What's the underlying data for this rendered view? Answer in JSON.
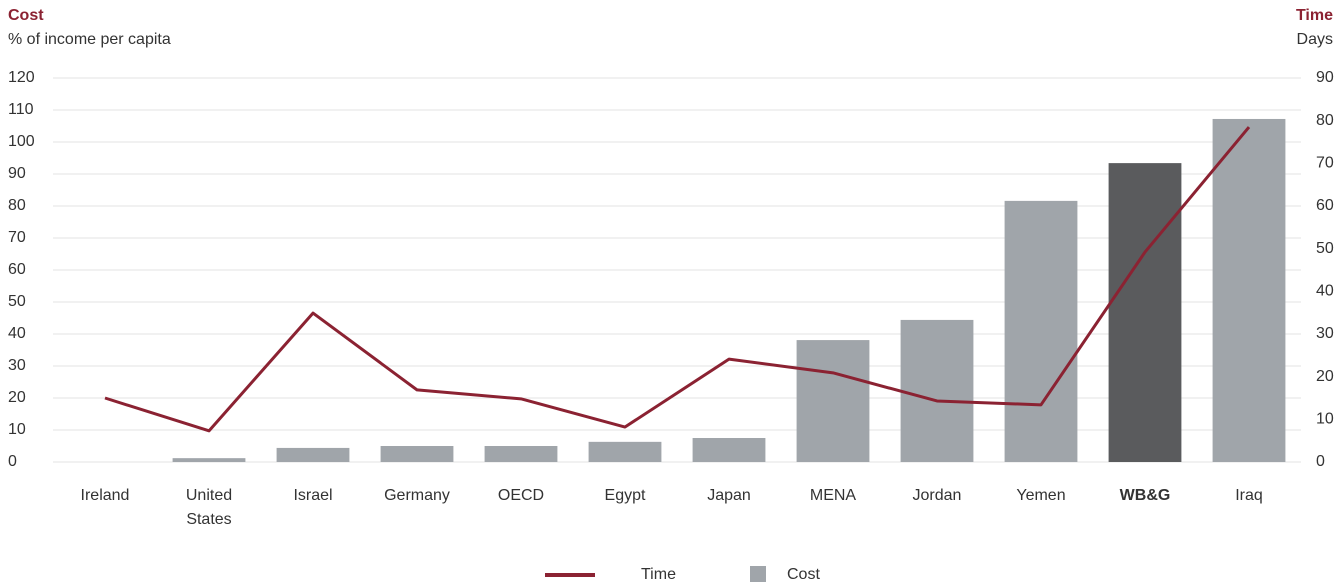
{
  "chart_data": {
    "type": "bar-line",
    "y_title": "Cost",
    "y_subtitle": "% of income per capita",
    "y2_title": "Time",
    "y2_subtitle": "Days",
    "categories": [
      "Ireland",
      "United States",
      "Israel",
      "Germany",
      "OECD",
      "Egypt",
      "Japan",
      "MENA",
      "Jordan",
      "Yemen",
      "WB&G",
      "Iraq"
    ],
    "highlight_index": 10,
    "series": [
      {
        "name": "Time",
        "type": "line",
        "axis": "y2",
        "color": "#8b2232",
        "values": [
          15,
          7.3,
          34.9,
          16.9,
          14.8,
          8.2,
          24.1,
          20.9,
          14.3,
          13.4,
          49.2,
          78.5
        ]
      },
      {
        "name": "Cost",
        "type": "bar",
        "axis": "y",
        "color": "#a0a5aa",
        "highlight_color": "#5a5b5d",
        "values": [
          0,
          1.2,
          4.4,
          5,
          5,
          6.3,
          7.5,
          38.1,
          44.4,
          81.6,
          93.4,
          107.2
        ]
      }
    ],
    "ylim": [
      0,
      120
    ],
    "yticks": [
      0,
      10,
      20,
      30,
      40,
      50,
      60,
      70,
      80,
      90,
      100,
      110,
      120
    ],
    "y2lim": [
      0,
      90
    ],
    "y2ticks": [
      0,
      10,
      20,
      30,
      40,
      50,
      60,
      70,
      80,
      90
    ],
    "grid": true
  }
}
